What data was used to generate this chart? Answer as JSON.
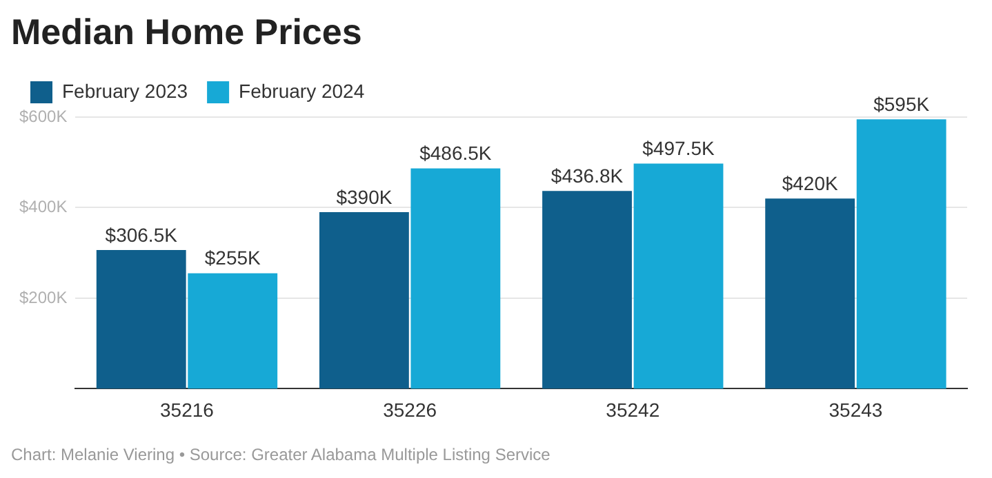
{
  "chart_data": {
    "type": "bar",
    "title": "Median Home Prices",
    "categories": [
      "35216",
      "35226",
      "35242",
      "35243"
    ],
    "series": [
      {
        "name": "February 2023",
        "color": "#0f5f8c",
        "values": [
          306.5,
          390,
          436.8,
          420
        ],
        "value_labels": [
          "$306.5K",
          "$390K",
          "$436.8K",
          "$420K"
        ]
      },
      {
        "name": "February 2024",
        "color": "#17a9d6",
        "values": [
          255,
          486.5,
          497.5,
          595
        ],
        "value_labels": [
          "$255K",
          "$486.5K",
          "$497.5K",
          "$595K"
        ]
      }
    ],
    "ylim": [
      0,
      600
    ],
    "yticks": [
      {
        "value": 200,
        "label": "$200K"
      },
      {
        "value": 400,
        "label": "$400K"
      },
      {
        "value": 600,
        "label": "$600K"
      }
    ],
    "grid": "y",
    "legend": "top left",
    "annotations": [
      "Chart: Melanie Viering • Source: Greater Alabama Multiple Listing Service"
    ]
  }
}
